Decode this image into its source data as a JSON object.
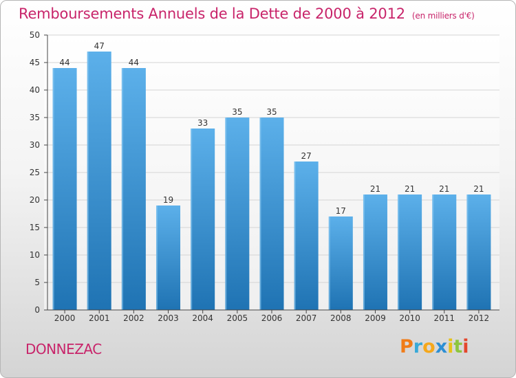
{
  "title": {
    "main": "Remboursements Annuels de la Dette de 2000 à 2012",
    "unit": "(en milliers d'€)"
  },
  "commune": "DONNEZAC",
  "logo": {
    "letters": [
      "P",
      "r",
      "o",
      "x",
      "i",
      "t",
      "i"
    ],
    "colors": [
      "#f07c18",
      "#38a9d8",
      "#f5a81c",
      "#2d8fd4",
      "#e6c21a",
      "#8dc63f",
      "#e4462c"
    ]
  },
  "colors": {
    "bar_light": "#5aaee9",
    "bar_dark": "#1f74b4",
    "axis": "#444444",
    "grid": "#d4d4d4",
    "title": "#c8246a"
  },
  "chart_data": {
    "type": "bar",
    "categories": [
      "2000",
      "2001",
      "2002",
      "2003",
      "2004",
      "2005",
      "2006",
      "2007",
      "2008",
      "2009",
      "2010",
      "2011",
      "2012"
    ],
    "values": [
      44,
      47,
      44,
      19,
      33,
      35,
      35,
      27,
      17,
      21,
      21,
      21,
      21
    ],
    "ylim": [
      0,
      50
    ],
    "yticks": [
      0,
      5,
      10,
      15,
      20,
      25,
      30,
      35,
      40,
      45,
      50
    ],
    "grid": true
  }
}
